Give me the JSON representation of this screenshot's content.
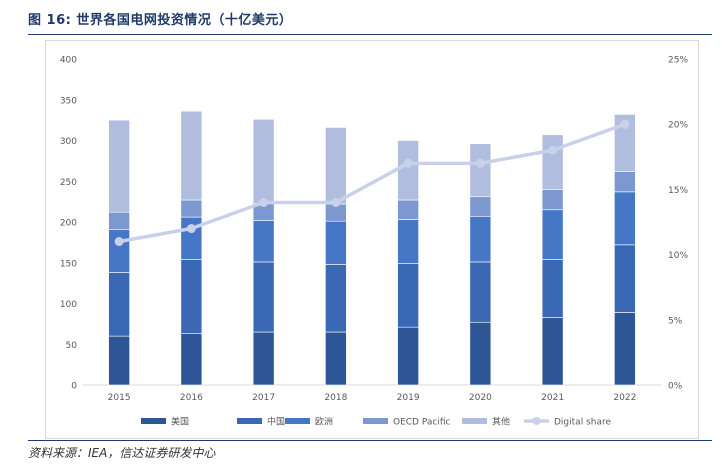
{
  "header": {
    "title": "图 16: 世界各国电网投资情况（十亿美元）"
  },
  "footer": {
    "source": "资料来源：IEA，信达证券研发中心"
  },
  "chart_data": {
    "type": "bar",
    "stacked": true,
    "categories": [
      "2015",
      "2016",
      "2017",
      "2018",
      "2019",
      "2020",
      "2021",
      "2022"
    ],
    "ylim": [
      0,
      400
    ],
    "y_ticks": [
      0,
      50,
      100,
      150,
      200,
      250,
      300,
      350,
      400
    ],
    "y2lim": [
      0,
      25
    ],
    "y2_ticks": [
      "0%",
      "5%",
      "10%",
      "15%",
      "20%",
      "25%"
    ],
    "grid": false,
    "legend_position": "bottom",
    "series": [
      {
        "name": "美国",
        "color": "#2e5596",
        "values": [
          60,
          63,
          65,
          65,
          71,
          77,
          83,
          89
        ]
      },
      {
        "name": "中国",
        "color": "#3b68b5",
        "values": [
          78,
          91,
          86,
          83,
          78,
          74,
          71,
          83
        ]
      },
      {
        "name": "欧洲",
        "color": "#4577c6",
        "values": [
          53,
          52,
          51,
          53,
          54,
          56,
          61,
          65
        ]
      },
      {
        "name": "OECD Pacific",
        "color": "#7d98d0",
        "values": [
          21,
          21,
          21,
          21,
          24,
          24,
          25,
          25
        ]
      },
      {
        "name": "其他",
        "color": "#b0bddf",
        "values": [
          113,
          109,
          103,
          94,
          73,
          65,
          67,
          70
        ]
      }
    ],
    "line_series": {
      "name": "Digital share",
      "color": "#c9d1ea",
      "axis": "right",
      "values": [
        11,
        12,
        14,
        14,
        17,
        17,
        18,
        20
      ]
    }
  }
}
